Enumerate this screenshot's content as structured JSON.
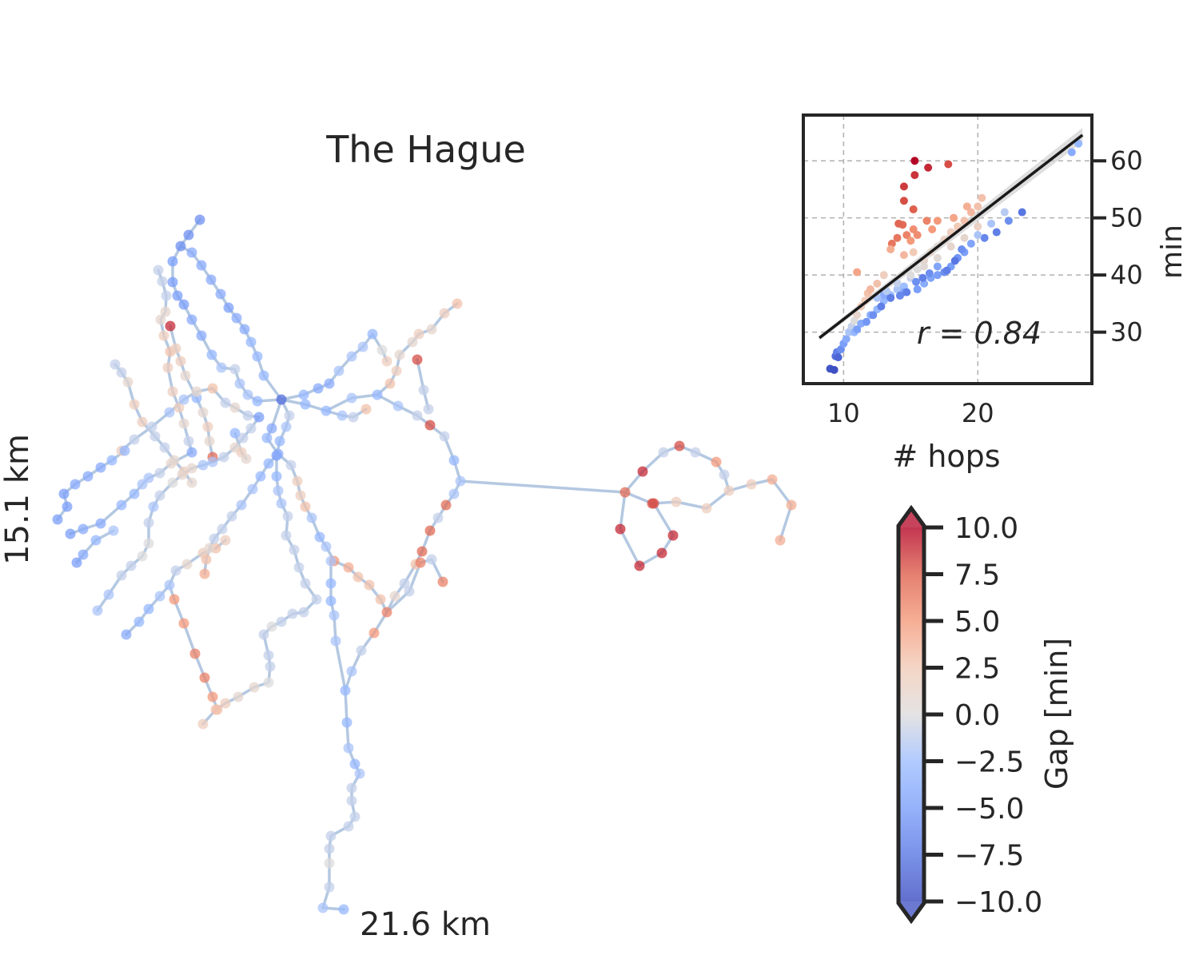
{
  "map": {
    "title": "The Hague",
    "width_label": "21.6 km",
    "height_label": "15.1 km"
  },
  "inset": {
    "xlabel": "# hops",
    "ylabel": "min",
    "xticks": [
      "10",
      "20"
    ],
    "yticks": [
      "30",
      "40",
      "50",
      "60"
    ],
    "r_label": "r = 0.84"
  },
  "colorbar": {
    "label": "Gap [min]",
    "ticks": [
      "10.0",
      "7.5",
      "5.0",
      "2.5",
      "0.0",
      "−2.5",
      "−5.0",
      "−7.5",
      "−10.0"
    ]
  },
  "colors": {
    "edge": "#b4c8e1",
    "axes": "#262626",
    "grid": "#b0b0b0",
    "fit": "#1a1a1a"
  },
  "chart_data": [
    {
      "type": "scatter",
      "chart": "inset",
      "xlabel": "# hops",
      "ylabel": "min",
      "xlim": [
        7,
        28.5
      ],
      "ylim": [
        21,
        68
      ],
      "grid": true,
      "annotation": "r = 0.84",
      "fit_line": [
        [
          8.2,
          29
        ],
        [
          27.8,
          64.5
        ]
      ],
      "points": [
        [
          9,
          23.6,
          -9.5
        ],
        [
          9.3,
          23.4,
          -9.8
        ],
        [
          9.4,
          25.8,
          -8
        ],
        [
          9.5,
          26.5,
          -7
        ],
        [
          9.6,
          25.6,
          -8.5
        ],
        [
          9.8,
          27,
          -6
        ],
        [
          10,
          28,
          -5
        ],
        [
          10.2,
          28.8,
          -4
        ],
        [
          10.4,
          30,
          -2
        ],
        [
          10.6,
          31,
          -1
        ],
        [
          10.8,
          32,
          0
        ],
        [
          11,
          33,
          1
        ],
        [
          11.3,
          34.5,
          2
        ],
        [
          11.6,
          35.5,
          2.5
        ],
        [
          11.8,
          36.8,
          3
        ],
        [
          12,
          37.5,
          3.5
        ],
        [
          12.5,
          38.5,
          3
        ],
        [
          13,
          40,
          2
        ],
        [
          11,
          40.5,
          4.5
        ],
        [
          10.8,
          30,
          -3
        ],
        [
          11.3,
          31.5,
          -4
        ],
        [
          12,
          33,
          -3.5
        ],
        [
          12.5,
          34,
          -3
        ],
        [
          13,
          35.5,
          -3
        ],
        [
          13.5,
          36.5,
          -2.5
        ],
        [
          14,
          37.5,
          -2
        ],
        [
          14.5,
          38,
          -2.5
        ],
        [
          15,
          39.5,
          -1
        ],
        [
          15.5,
          41,
          0
        ],
        [
          16,
          42.5,
          1
        ],
        [
          16.5,
          44,
          1
        ],
        [
          17,
          45,
          0.5
        ],
        [
          17.5,
          46.2,
          1.5
        ],
        [
          18,
          47.5,
          2
        ],
        [
          18.5,
          48.5,
          2.5
        ],
        [
          19,
          49.5,
          3
        ],
        [
          19.5,
          51,
          3.5
        ],
        [
          20,
          52,
          3
        ],
        [
          20.3,
          53.5,
          3
        ],
        [
          19.2,
          52,
          4
        ],
        [
          18.2,
          50,
          4.5
        ],
        [
          17,
          49.5,
          5
        ],
        [
          16.6,
          48,
          5
        ],
        [
          16.2,
          49.5,
          6
        ],
        [
          15.2,
          48,
          5.5
        ],
        [
          14.7,
          47,
          6
        ],
        [
          14.4,
          48.8,
          7
        ],
        [
          14,
          46.5,
          6.5
        ],
        [
          13.6,
          45.5,
          6.5
        ],
        [
          14.1,
          49,
          7.2
        ],
        [
          15,
          46,
          5
        ],
        [
          15.5,
          47,
          5.5
        ],
        [
          13.5,
          44.5,
          4
        ],
        [
          14.5,
          43.5,
          3.5
        ],
        [
          15.2,
          44,
          2.5
        ],
        [
          15.2,
          51.5,
          7.5
        ],
        [
          14.5,
          53,
          8
        ],
        [
          14.5,
          55.5,
          8.5
        ],
        [
          15.3,
          57.5,
          8.7
        ],
        [
          15.3,
          60,
          10
        ],
        [
          16.3,
          58.8,
          9
        ],
        [
          17.8,
          59.4,
          8
        ],
        [
          13,
          36.5,
          -4
        ],
        [
          13.5,
          36,
          -5
        ],
        [
          14.5,
          37,
          -4.5
        ],
        [
          15.5,
          37.5,
          -5
        ],
        [
          16,
          38.5,
          -4
        ],
        [
          16.5,
          39.5,
          -4.5
        ],
        [
          17,
          40,
          -5
        ],
        [
          17.5,
          40.5,
          -6
        ],
        [
          18,
          41.5,
          -5
        ],
        [
          18.5,
          43,
          -5.5
        ],
        [
          19,
          44,
          -5
        ],
        [
          19.5,
          45.5,
          -4.5
        ],
        [
          20.5,
          46.5,
          -6.5
        ],
        [
          21.4,
          47.5,
          -7
        ],
        [
          22.3,
          49.5,
          -6
        ],
        [
          23.3,
          51,
          -7.5
        ],
        [
          18.3,
          42.5,
          -7.5
        ],
        [
          18.8,
          44.5,
          -6
        ],
        [
          17.7,
          40.8,
          -7
        ],
        [
          17,
          41.5,
          -4.5
        ],
        [
          16.4,
          40.3,
          -6
        ],
        [
          15.9,
          39.5,
          -7
        ],
        [
          15.4,
          38.8,
          -6
        ],
        [
          14.7,
          37,
          -7
        ],
        [
          14.2,
          36.4,
          -6.5
        ],
        [
          13.5,
          36,
          -7
        ],
        [
          12.8,
          34.5,
          -7
        ],
        [
          12.2,
          33,
          -6
        ],
        [
          11.7,
          31.8,
          -5.5
        ],
        [
          11,
          30.5,
          -5
        ],
        [
          27,
          61.5,
          -4
        ],
        [
          27.5,
          63,
          -3
        ],
        [
          20,
          47,
          -2
        ],
        [
          21,
          49,
          -2
        ],
        [
          22,
          51,
          -1.5
        ],
        [
          12.5,
          36,
          -2
        ],
        [
          13.2,
          37.2,
          -1.5
        ],
        [
          14,
          38.6,
          -1
        ],
        [
          15,
          40,
          0
        ],
        [
          16,
          41.5,
          0.5
        ],
        [
          17,
          43,
          0.5
        ],
        [
          18,
          45,
          1
        ],
        [
          19,
          46.5,
          1
        ],
        [
          20,
          48.5,
          1.5
        ]
      ]
    },
    {
      "type": "network",
      "chart": "map",
      "title": "The Hague",
      "colorbar": {
        "label": "Gap [min]",
        "range": [
          -10,
          10
        ],
        "extend": "both"
      }
    }
  ]
}
